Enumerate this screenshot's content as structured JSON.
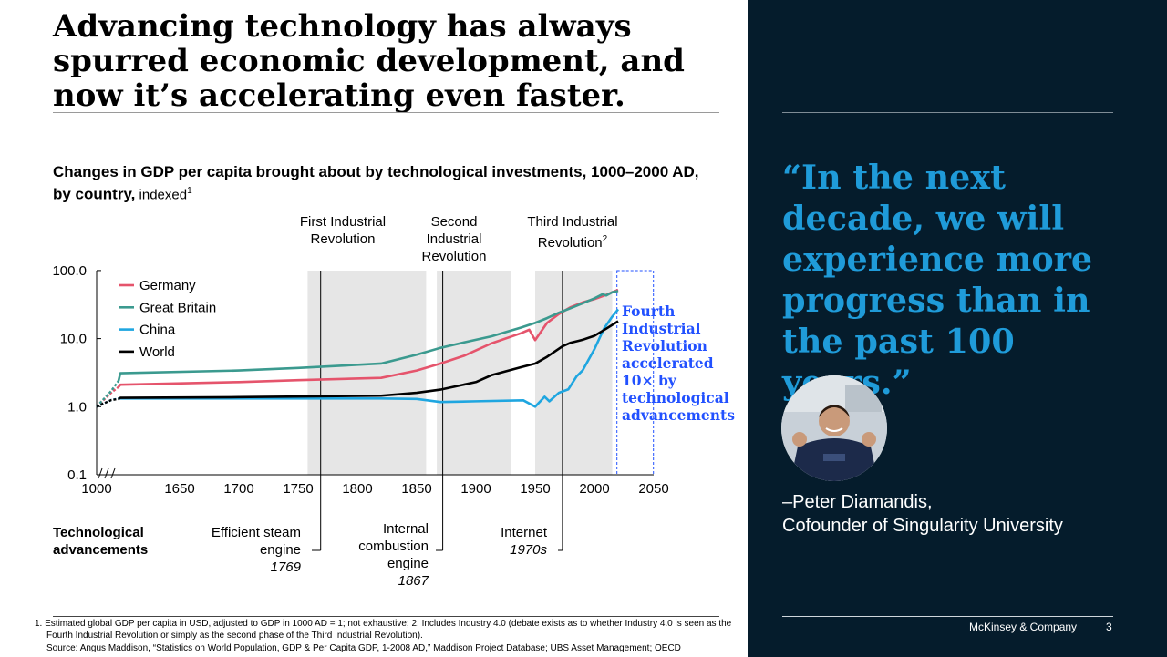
{
  "slide": {
    "title": "Advancing technology has always spurred economic development, and now it’s accelerating even faster.",
    "subtitle_bold": "Changes in GDP per capita brought about by technological investments, 1000–2000 AD, by country,",
    "subtitle_normal": " indexed",
    "subtitle_sup": "1"
  },
  "chart_data": {
    "type": "line",
    "y_scale": "log",
    "ylim": [
      0.1,
      100
    ],
    "y_ticks": [
      "100.0",
      "10.0",
      "1.0",
      "0.1"
    ],
    "x_ticks": [
      "1000",
      "1650",
      "1700",
      "1750",
      "1800",
      "1850",
      "1900",
      "1950",
      "2000",
      "2050"
    ],
    "series": [
      {
        "name": "Germany",
        "color": "#e5546c",
        "points": [
          [
            1000,
            1.0
          ],
          [
            1020,
            1.6
          ],
          [
            1030,
            1.95
          ],
          [
            1600,
            2.1
          ],
          [
            1700,
            2.3
          ],
          [
            1750,
            2.45
          ],
          [
            1820,
            2.65
          ],
          [
            1850,
            3.4
          ],
          [
            1870,
            4.3
          ],
          [
            1890,
            5.6
          ],
          [
            1913,
            8.5
          ],
          [
            1938,
            12.0
          ],
          [
            1945,
            13.5
          ],
          [
            1950,
            9.5
          ],
          [
            1960,
            17.0
          ],
          [
            1970,
            23
          ],
          [
            1980,
            29
          ],
          [
            1990,
            34
          ],
          [
            2000,
            38
          ],
          [
            2010,
            44
          ],
          [
            2015,
            48
          ],
          [
            2020,
            52
          ]
        ]
      },
      {
        "name": "Great Britain",
        "color": "#3b9a8f",
        "points": [
          [
            1000,
            1.0
          ],
          [
            1020,
            1.7
          ],
          [
            1030,
            2.4
          ],
          [
            1600,
            3.1
          ],
          [
            1700,
            3.4
          ],
          [
            1750,
            3.7
          ],
          [
            1820,
            4.3
          ],
          [
            1850,
            5.8
          ],
          [
            1870,
            7.3
          ],
          [
            1890,
            8.8
          ],
          [
            1913,
            10.8
          ],
          [
            1938,
            14.5
          ],
          [
            1950,
            17.0
          ],
          [
            1960,
            20
          ],
          [
            1970,
            24
          ],
          [
            1980,
            28
          ],
          [
            1990,
            33
          ],
          [
            2000,
            39
          ],
          [
            2007,
            45
          ],
          [
            2010,
            43
          ],
          [
            2015,
            48
          ],
          [
            2020,
            50
          ]
        ]
      },
      {
        "name": "China",
        "color": "#1fa6e0",
        "points": [
          [
            1000,
            1.0
          ],
          [
            1020,
            1.25
          ],
          [
            1030,
            1.32
          ],
          [
            1600,
            1.32
          ],
          [
            1700,
            1.32
          ],
          [
            1820,
            1.32
          ],
          [
            1850,
            1.3
          ],
          [
            1870,
            1.17
          ],
          [
            1900,
            1.2
          ],
          [
            1940,
            1.24
          ],
          [
            1950,
            1.0
          ],
          [
            1958,
            1.4
          ],
          [
            1962,
            1.2
          ],
          [
            1970,
            1.6
          ],
          [
            1978,
            1.8
          ],
          [
            1985,
            2.8
          ],
          [
            1990,
            3.4
          ],
          [
            2000,
            7.0
          ],
          [
            2008,
            14
          ],
          [
            2015,
            21
          ],
          [
            2020,
            27
          ]
        ]
      },
      {
        "name": "World",
        "color": "#000000",
        "points": [
          [
            1000,
            1.0
          ],
          [
            1020,
            1.25
          ],
          [
            1030,
            1.3
          ],
          [
            1600,
            1.35
          ],
          [
            1700,
            1.38
          ],
          [
            1820,
            1.45
          ],
          [
            1850,
            1.6
          ],
          [
            1870,
            1.78
          ],
          [
            1900,
            2.3
          ],
          [
            1913,
            2.9
          ],
          [
            1938,
            3.8
          ],
          [
            1950,
            4.3
          ],
          [
            1960,
            5.4
          ],
          [
            1973,
            7.7
          ],
          [
            1980,
            8.7
          ],
          [
            1990,
            9.6
          ],
          [
            2000,
            11.0
          ],
          [
            2010,
            14
          ],
          [
            2020,
            18
          ]
        ]
      }
    ],
    "revolutions": [
      {
        "label": "First Industrial Revolution",
        "start": 1758,
        "end": 1858,
        "marker": 1769
      },
      {
        "label": "Second Industrial Revolution",
        "start": 1867,
        "end": 1930,
        "marker": 1872
      },
      {
        "label": "Third Industrial Revolution",
        "label_sup": "2",
        "start": 1950,
        "end": 2015,
        "marker": 1973
      }
    ],
    "fourth_revolution": {
      "start": 2019,
      "end": 2050,
      "label": "Fourth Industrial Revolution accelerated 10× by technological advancements"
    }
  },
  "revolution_labels": {
    "first": "First Industrial Revolution",
    "second": "Second Industrial Revolution",
    "third": "Third Industrial Revolution",
    "third_sup": "2"
  },
  "advancements": {
    "heading": "Technological advancements",
    "steam": "Efficient steam engine",
    "steam_year": "1769",
    "combustion": "Internal combustion engine",
    "combustion_year": "1867",
    "internet": "Internet",
    "internet_year": "1970s"
  },
  "footnotes": {
    "note1": "1. Estimated global GDP per capita in USD, adjusted to GDP in 1000 AD = 1; not exhaustive; 2. Includes Industry 4.0 (debate exists as to whether Industry 4.0 is seen as the Fourth Industrial Revolution or simply as the second phase of the Third Industrial Revolution).",
    "source": "Source: Angus Maddison, “Statistics on World Population, GDP & Per Capita GDP, 1-2008 AD,” Maddison Project Database; UBS Asset Management; OECD"
  },
  "sidebar": {
    "quote": "“In the next decade, we will experience more progress than in the past 100 years.”",
    "attribution_name": "–Peter Diamandis,",
    "attribution_title": "Cofounder of Singularity University",
    "company": "McKinsey & Company",
    "page_number": "3"
  },
  "colors": {
    "sidebar_bg": "#051c2c",
    "quote": "#1f9bd9",
    "accent_blue": "#2251ff"
  }
}
